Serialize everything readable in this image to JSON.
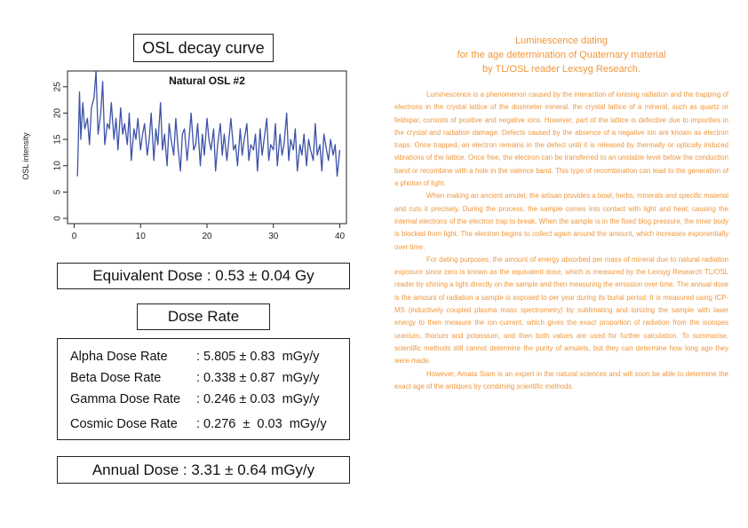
{
  "left_panel": {
    "osl_box_title": "OSL decay curve",
    "equivalent_dose": "Equivalent Dose : 0.53 ± 0.04 Gy",
    "dose_rate_title": "Dose Rate",
    "dose_rates": [
      {
        "label": "Alpha Dose Rate",
        "value": ": 5.805 ± 0.83  mGy/y"
      },
      {
        "label": "Beta Dose Rate",
        "value": ": 0.338 ± 0.87  mGy/y"
      },
      {
        "label": "Gamma Dose Rate",
        "value": ": 0.246 ± 0.03  mGy/y"
      },
      {
        "label": "Cosmic Dose Rate",
        "value": ": 0.276  ±  0.03  mGy/y"
      }
    ],
    "annual_dose": "Annual Dose : 3.31 ± 0.64 mGy/y"
  },
  "chart_data": {
    "type": "line",
    "title": "Natural OSL #2",
    "xlabel": "",
    "ylabel": "OSL intensity",
    "xlim": [
      -1,
      41
    ],
    "ylim": [
      -1,
      28
    ],
    "x_ticks": [
      0,
      10,
      20,
      30,
      40
    ],
    "y_ticks": [
      0,
      5,
      10,
      15,
      20,
      25
    ],
    "grid": false,
    "line_color": "#3d52a8",
    "series": [
      {
        "x": [
          0.5,
          0.8,
          1,
          1.3,
          1.6,
          2,
          2.3,
          2.6,
          3,
          3.3,
          3.6,
          4,
          4.3,
          4.6,
          5,
          5.3,
          5.6,
          6,
          6.3,
          6.6,
          7,
          7.3,
          7.6,
          8,
          8.3,
          8.6,
          9,
          9.3,
          9.6,
          10,
          10.3,
          10.6,
          11,
          11.3,
          11.6,
          12,
          12.3,
          12.6,
          13,
          13.3,
          13.6,
          14,
          14.3,
          14.6,
          15,
          15.3,
          15.6,
          16,
          16.3,
          16.6,
          17,
          17.3,
          17.6,
          18,
          18.3,
          18.6,
          19,
          19.3,
          19.6,
          20,
          20.3,
          20.6,
          21,
          21.3,
          21.6,
          22,
          22.3,
          22.6,
          23,
          23.3,
          23.6,
          24,
          24.3,
          24.6,
          25,
          25.3,
          25.6,
          26,
          26.3,
          26.6,
          27,
          27.3,
          27.6,
          28,
          28.3,
          28.6,
          29,
          29.3,
          29.6,
          30,
          30.3,
          30.6,
          31,
          31.3,
          31.6,
          32,
          32.3,
          32.6,
          33,
          33.3,
          33.6,
          34,
          34.3,
          34.6,
          35,
          35.3,
          35.6,
          36,
          36.3,
          36.6,
          37,
          37.3,
          37.6,
          38,
          38.3,
          38.6,
          39,
          39.3,
          39.6,
          40
        ],
        "y": [
          8,
          24,
          15,
          22,
          17,
          19,
          14,
          21,
          23,
          28,
          16,
          20,
          26,
          14,
          18,
          17,
          22,
          15,
          19,
          13,
          21,
          16,
          18,
          14,
          20,
          11,
          17,
          15,
          19,
          13,
          16,
          18,
          12,
          15,
          20,
          11,
          17,
          14,
          22,
          13,
          16,
          10,
          18,
          15,
          12,
          19,
          14,
          9,
          16,
          17,
          11,
          15,
          20,
          13,
          14,
          18,
          10,
          16,
          12,
          19,
          15,
          13,
          17,
          9,
          14,
          18,
          12,
          16,
          11,
          15,
          19,
          13,
          14,
          10,
          17,
          12,
          15,
          18,
          11,
          14,
          13,
          16,
          9,
          17,
          12,
          15,
          19,
          11,
          14,
          13,
          18,
          10,
          16,
          12,
          14,
          20,
          11,
          15,
          13,
          17,
          9,
          14,
          12,
          16,
          10,
          15,
          13,
          11,
          18,
          12,
          14,
          9,
          16,
          13,
          11,
          15,
          12,
          14,
          8,
          13
        ]
      }
    ]
  },
  "article": {
    "title_lines": [
      "Luminescence dating",
      "for the age determination of Quaternary material",
      "by TL/OSL reader Lexsyg Research."
    ],
    "paragraphs": [
      "Luminescence is a phenomenon caused by the interaction of ionising radiation and the trapping of electrons in the crystal lattice of the dosimeter mineral. the crystal lattice of a mineral, such as quartz or feldspar, consists of positive and negative ions. However, part of the lattice is defective due to impurities in the crystal and radiation damage. Defects caused by the absence of a negative ion are known as electron traps. Once trapped, an electron remains in the defect until it is released by thermally or optically induced vibrations of the lattice. Once free, the electron can be transferred to an unstable level below the conduction band or recombine with a hole in the valence band. This type of recombination can lead to the generation of a photon of light.",
      "When making an ancient amulet, the artisan provides a bowl, herbs, minerals and specific material and cuts it precisely. During the process, the sample comes into contact with light and heat, causing the internal electrons of the electron trap to break. When the sample is in the fixed blog pressure, the inner body is blocked from light. The electron begins to collect again around the amount, which increases exponentially over time.",
      "For dating purposes, the amount of energy absorbed per mass of mineral due to natural radiation exposure since zero is known as the equivalent dose, which is measured by the Lexsyg Research TL/OSL reader by shining a light directly on the sample and then measuring the emission over time. The annual dose is the amount of radiation a sample is exposed to per year during its burial period. It is measured using ICP-MS (inductively coupled plasma mass spectrometry) by sublimating and ionizing the sample with laser energy to then measure the ion current, which gives the exact proportion of radiation from the isotopes uranium, thorium and potassium, and then both values are used for further calculation. To summarise, scientific methods still cannot determine the purity of amulets, but they can determine how long ago they were made.",
      "However, Amata Siam is an expert in the natural sciences and will soon be able to determine the exact age of the antiques by combining scientific methods."
    ]
  }
}
